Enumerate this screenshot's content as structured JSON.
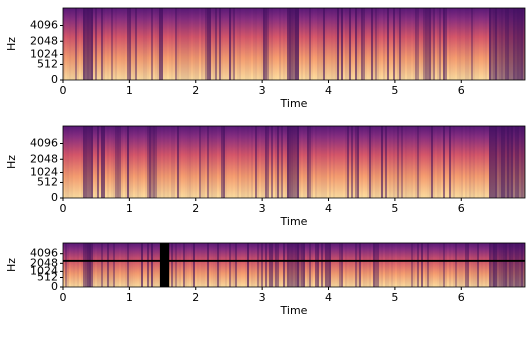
{
  "chart_data": [
    {
      "type": "spectrogram",
      "xlabel": "Time",
      "ylabel": "Hz",
      "xlim": [
        0,
        6.96
      ],
      "xticks": [
        0,
        1,
        2,
        3,
        4,
        5,
        6
      ],
      "yscale": "mel",
      "ylim": [
        0,
        8192
      ],
      "yticks": [
        0,
        512,
        1024,
        2048,
        4096
      ]
    },
    {
      "type": "spectrogram",
      "xlabel": "Time",
      "ylabel": "Hz",
      "xlim": [
        0,
        6.96
      ],
      "xticks": [
        0,
        1,
        2,
        3,
        4,
        5,
        6
      ],
      "yscale": "mel",
      "ylim": [
        0,
        8192
      ],
      "yticks": [
        0,
        512,
        1024,
        2048,
        4096
      ]
    },
    {
      "type": "spectrogram",
      "xlabel": "Time",
      "ylabel": "Hz",
      "xlim": [
        0,
        6.96
      ],
      "xticks": [
        0,
        1,
        2,
        3,
        4,
        5,
        6
      ],
      "yscale": "mel",
      "ylim": [
        0,
        8192
      ],
      "yticks": [
        0,
        512,
        1024,
        2048,
        4096
      ],
      "time_mask": [
        1.46,
        1.6
      ],
      "freq_mask": [
        2300,
        2650
      ]
    }
  ]
}
